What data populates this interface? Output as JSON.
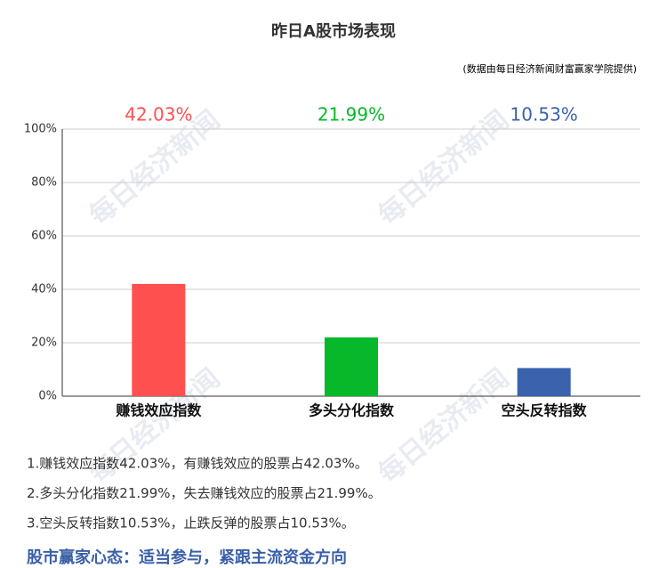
{
  "chart_data": {
    "type": "bar",
    "title": "昨日A股市场表现",
    "source": "(数据由每日经济新闻财富赢家学院提供)",
    "categories": [
      "赚钱效应指数",
      "多头分化指数",
      "空头反转指数"
    ],
    "values": [
      42.03,
      21.99,
      10.53
    ],
    "value_labels": [
      "42.03%",
      "21.99%",
      "10.53%"
    ],
    "colors": [
      "#ff5050",
      "#07b82a",
      "#3a62ad"
    ],
    "ylim": [
      0,
      100
    ],
    "yticks": [
      {
        "value": 0,
        "label": "0%"
      },
      {
        "value": 20,
        "label": "20%"
      },
      {
        "value": 40,
        "label": "40%"
      },
      {
        "value": 60,
        "label": "60%"
      },
      {
        "value": 80,
        "label": "80%"
      },
      {
        "value": 100,
        "label": "100%"
      }
    ],
    "grid": true,
    "watermark": "每日经济新闻",
    "notes": [
      "1.赚钱效应指数42.03%，有赚钱效应的股票占42.03%。",
      "2.多头分化指数21.99%，失去赚钱效应的股票占21.99%。",
      "3.空头反转指数10.53%，止跌反弹的股票占10.53%。"
    ],
    "headline": "股市赢家心态：适当参与，紧跟主流资金方向"
  }
}
